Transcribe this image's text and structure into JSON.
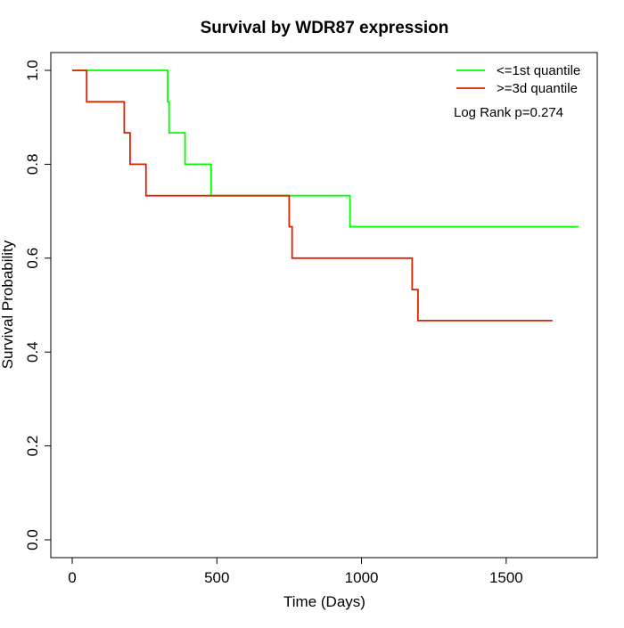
{
  "chart_data": {
    "type": "line",
    "subtype": "kaplan-meier step",
    "title": "Survival by WDR87 expression",
    "xlabel": "Time (Days)",
    "ylabel": "Survival Probability",
    "xlim": [
      0,
      1750
    ],
    "ylim": [
      0,
      1
    ],
    "xticks": [
      0,
      500,
      1000,
      1500
    ],
    "xtick_labels": [
      "0",
      "500",
      "1000",
      "1500"
    ],
    "yticks": [
      0,
      0.2,
      0.4,
      0.6,
      0.8,
      1
    ],
    "ytick_labels": [
      "0.0",
      "0.2",
      "0.4",
      "0.6",
      "0.8",
      "1.0"
    ],
    "grid": false,
    "legend_position": "top-right",
    "annotation": "Log Rank p=0.274",
    "series": [
      {
        "name": "<=1st quantile",
        "color": "#00ff00",
        "x": [
          0,
          330,
          335,
          390,
          480,
          960,
          1750
        ],
        "y": [
          1.0,
          0.933,
          0.867,
          0.8,
          0.733,
          0.667,
          0.667
        ]
      },
      {
        "name": ">=3d quantile",
        "color": "#dd2200",
        "x": [
          0,
          50,
          180,
          200,
          255,
          750,
          760,
          1175,
          1195,
          1660
        ],
        "y": [
          1.0,
          0.933,
          0.867,
          0.8,
          0.733,
          0.667,
          0.6,
          0.533,
          0.467,
          0.467
        ]
      }
    ]
  }
}
